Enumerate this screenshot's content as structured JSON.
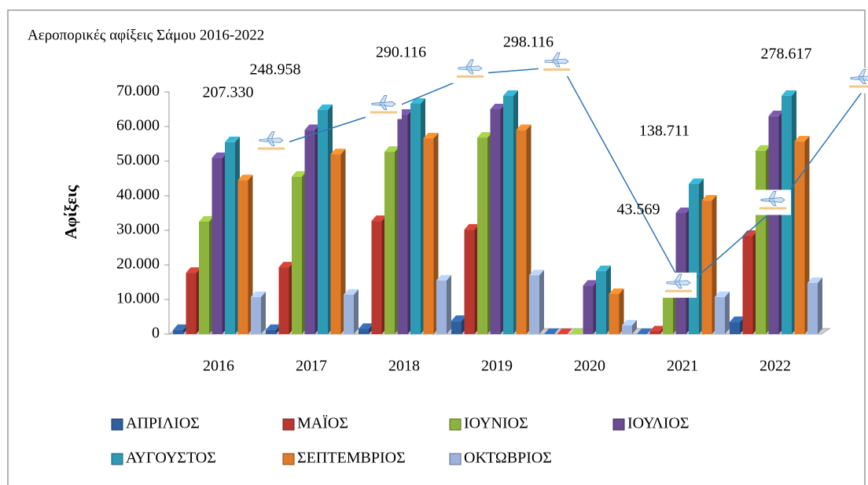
{
  "chart_data": {
    "type": "bar",
    "title": "Αεροπορικές αφίξεις Σάμου 2016-2022",
    "ylabel": "Αφίξεις",
    "categories": [
      "2016",
      "2017",
      "2018",
      "2019",
      "2020",
      "2021",
      "2022"
    ],
    "series": [
      {
        "name": "ΑΠΡΙΛΙΟΣ",
        "color": "#2f5f9e",
        "values": [
          1200,
          1200,
          1500,
          3800,
          0,
          0,
          3500
        ]
      },
      {
        "name": "ΜΑΪΟΣ",
        "color": "#b8382f",
        "values": [
          17700,
          19300,
          32700,
          30200,
          0,
          800,
          28400
        ]
      },
      {
        "name": "ΙΟΥΝΙΟΣ",
        "color": "#8db33e",
        "values": [
          32500,
          45500,
          52700,
          56800,
          0,
          13500,
          53000
        ]
      },
      {
        "name": "ΙΟΥΛΙΟΣ",
        "color": "#6a4c93",
        "values": [
          50900,
          59000,
          63400,
          65000,
          14000,
          35000,
          63000
        ]
      },
      {
        "name": "ΑΥΓΟΥΣΤΟΣ",
        "color": "#2e9bb5",
        "values": [
          55500,
          64800,
          66600,
          68900,
          18200,
          43400,
          68900
        ]
      },
      {
        "name": "ΣΕΠΤΕΜΒΡΙΟΣ",
        "color": "#e07b28",
        "values": [
          44500,
          52000,
          56600,
          59000,
          11600,
          38600,
          55700
        ]
      },
      {
        "name": "ΟΚΤΩΒΡΙΟΣ",
        "color": "#9db3db",
        "values": [
          10700,
          11400,
          15500,
          17000,
          2500,
          10700,
          14800
        ]
      }
    ],
    "totals": [
      {
        "value": 207330,
        "label": "207.330"
      },
      {
        "value": 248958,
        "label": "248.958"
      },
      {
        "value": 290116,
        "label": "290.116"
      },
      {
        "value": 298116,
        "label": "298.116"
      },
      {
        "value": 43569,
        "label": "43.569"
      },
      {
        "value": 138711,
        "label": "138.711"
      },
      {
        "value": 278617,
        "label": "278.617"
      }
    ],
    "totals_color": "#2e75b6",
    "ylim": [
      0,
      70000
    ],
    "yticks": [
      0,
      {
        "value": 10000,
        "label": "10.000"
      },
      {
        "value": 20000,
        "label": "20.000"
      },
      {
        "value": 30000,
        "label": "30.000"
      },
      {
        "value": 40000,
        "label": "40.000"
      },
      {
        "value": 50000,
        "label": "50.000"
      },
      {
        "value": 60000,
        "label": "60.000"
      },
      {
        "value": 70000,
        "label": "70.000"
      }
    ],
    "grid": false,
    "legend": "bottom"
  }
}
